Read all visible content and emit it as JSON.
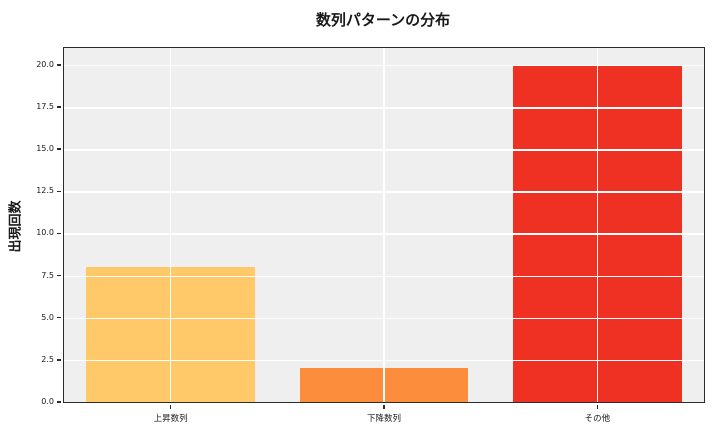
{
  "title": "数列パターンの分布",
  "chart_data": {
    "type": "bar",
    "title": "数列パターンの分布",
    "categories": [
      "上昇数列",
      "下降数列",
      "その他"
    ],
    "values": [
      8,
      2,
      20
    ],
    "bar_colors": [
      "#FFC96A",
      "#FB8D3D",
      "#EE3123"
    ],
    "xlabel": "",
    "ylabel": "出現回数",
    "ylim": [
      0,
      21
    ],
    "yticks": [
      0.0,
      2.5,
      5.0,
      7.5,
      10.0,
      12.5,
      15.0,
      17.5,
      20.0
    ],
    "ytick_labels": [
      "0.0",
      "2.5",
      "5.0",
      "7.5",
      "10.0",
      "12.5",
      "15.0",
      "17.5",
      "20.0"
    ],
    "grid": true,
    "grid_on_top_of_bars": true,
    "legend": false,
    "plot_bg": "#EFEFEF",
    "figure_bg": "#FFFFFF",
    "grid_color": "#FFFFFF",
    "spine_color": "#2B2B2B",
    "text_color": "#1A1A1A",
    "bar_width_fraction": 0.79
  }
}
